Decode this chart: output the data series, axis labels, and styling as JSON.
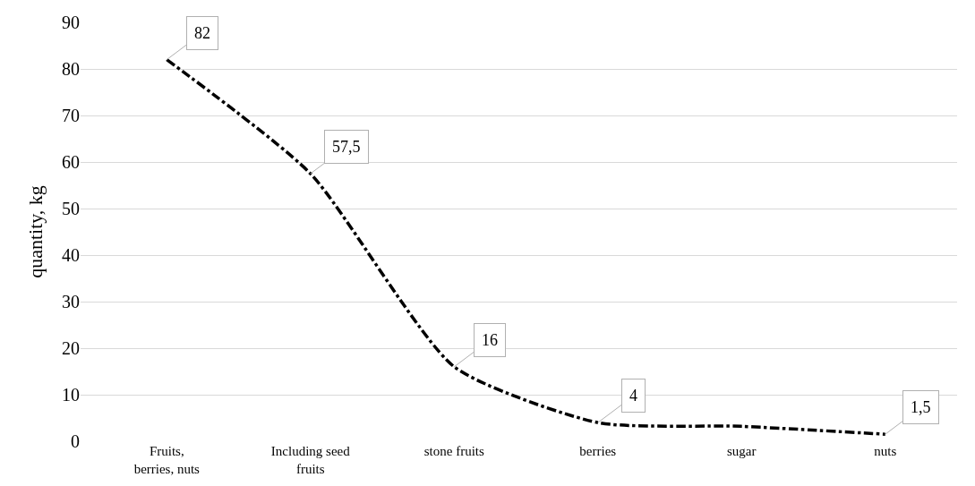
{
  "chart_data": {
    "type": "line",
    "ylabel": "quantity, kg",
    "categories": [
      "Fruits, berries, nuts",
      "Including seed fruits",
      "stone fruits",
      "berries",
      "sugar",
      "nuts"
    ],
    "series": [
      {
        "color": "#000000",
        "values": [
          82,
          57.5,
          16,
          4,
          3.2,
          1.5
        ],
        "value_labels": [
          "82",
          "57,5",
          "16",
          "4",
          null,
          "1,5"
        ]
      }
    ],
    "ylim": [
      0,
      90
    ],
    "yticks": [
      0,
      10,
      20,
      30,
      40,
      50,
      60,
      70,
      80,
      90
    ],
    "grid": "y",
    "marker": "none",
    "line_style": "dashdot"
  }
}
